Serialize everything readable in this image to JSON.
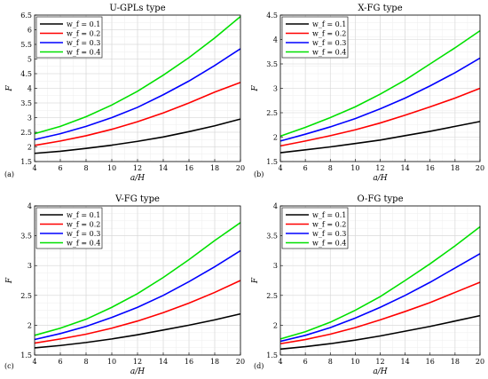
{
  "chart_data": [
    {
      "type": "line",
      "panel_label": "(a)",
      "title": "U-GPLs type",
      "xlabel": "a/H",
      "ylabel": "F",
      "xlim": [
        4,
        20
      ],
      "ylim": [
        1.5,
        6.5
      ],
      "xticks": [
        4,
        6,
        8,
        10,
        12,
        14,
        16,
        18,
        20
      ],
      "yticks": [
        1.5,
        2,
        2.5,
        3,
        3.5,
        4,
        4.5,
        5,
        5.5,
        6,
        6.5
      ],
      "ytick_labels": [
        "1.5",
        "2",
        "2.5",
        "3",
        "3.5",
        "4",
        "4.5",
        "5",
        "5.5",
        "6",
        "6.5"
      ],
      "grid": true,
      "legend_position": "top-left",
      "x": [
        4,
        6,
        8,
        10,
        12,
        14,
        16,
        18,
        20
      ],
      "series": [
        {
          "name": "w_f = 0.1",
          "color": "#000000",
          "values": [
            1.78,
            1.85,
            1.95,
            2.06,
            2.19,
            2.34,
            2.52,
            2.72,
            2.95
          ]
        },
        {
          "name": "w_f = 0.2",
          "color": "#ff0000",
          "values": [
            2.05,
            2.2,
            2.38,
            2.6,
            2.86,
            3.16,
            3.5,
            3.87,
            4.2
          ]
        },
        {
          "name": "w_f = 0.3",
          "color": "#0000ff",
          "values": [
            2.25,
            2.45,
            2.7,
            3.0,
            3.35,
            3.78,
            4.25,
            4.78,
            5.35
          ]
        },
        {
          "name": "w_f = 0.4",
          "color": "#00e000",
          "values": [
            2.45,
            2.7,
            3.03,
            3.43,
            3.9,
            4.45,
            5.05,
            5.72,
            6.45
          ]
        }
      ]
    },
    {
      "type": "line",
      "panel_label": "(b)",
      "title": "X-FG type",
      "xlabel": "a/H",
      "ylabel": "F",
      "xlim": [
        4,
        20
      ],
      "ylim": [
        1.5,
        4.5
      ],
      "xticks": [
        4,
        6,
        8,
        10,
        12,
        14,
        16,
        18,
        20
      ],
      "yticks": [
        1.5,
        2,
        2.5,
        3,
        3.5,
        4,
        4.5
      ],
      "ytick_labels": [
        "1.5",
        "2",
        "2.5",
        "3",
        "3.5",
        "4",
        "4.5"
      ],
      "grid": true,
      "legend_position": "top-left",
      "x": [
        4,
        6,
        8,
        10,
        12,
        14,
        16,
        18,
        20
      ],
      "series": [
        {
          "name": "w_f = 0.1",
          "color": "#000000",
          "values": [
            1.68,
            1.74,
            1.8,
            1.87,
            1.94,
            2.03,
            2.12,
            2.22,
            2.32
          ]
        },
        {
          "name": "w_f = 0.2",
          "color": "#ff0000",
          "values": [
            1.82,
            1.92,
            2.03,
            2.15,
            2.29,
            2.45,
            2.62,
            2.8,
            3.0
          ]
        },
        {
          "name": "w_f = 0.3",
          "color": "#0000ff",
          "values": [
            1.92,
            2.06,
            2.21,
            2.38,
            2.58,
            2.8,
            3.05,
            3.32,
            3.62
          ]
        },
        {
          "name": "w_f = 0.4",
          "color": "#00e000",
          "values": [
            2.02,
            2.2,
            2.4,
            2.62,
            2.88,
            3.17,
            3.5,
            3.83,
            4.18
          ]
        }
      ]
    },
    {
      "type": "line",
      "panel_label": "(c)",
      "title": "V-FG type",
      "xlabel": "a/H",
      "ylabel": "F",
      "xlim": [
        4,
        20
      ],
      "ylim": [
        1.5,
        4
      ],
      "xticks": [
        4,
        6,
        8,
        10,
        12,
        14,
        16,
        18,
        20
      ],
      "yticks": [
        1.5,
        2,
        2.5,
        3,
        3.5,
        4
      ],
      "ytick_labels": [
        "1.5",
        "2",
        "2.5",
        "3",
        "3.5",
        "4"
      ],
      "grid": true,
      "legend_position": "top-left",
      "x": [
        4,
        6,
        8,
        10,
        12,
        14,
        16,
        18,
        20
      ],
      "series": [
        {
          "name": "w_f = 0.1",
          "color": "#000000",
          "values": [
            1.62,
            1.66,
            1.71,
            1.77,
            1.84,
            1.92,
            2.0,
            2.09,
            2.19
          ]
        },
        {
          "name": "w_f = 0.2",
          "color": "#ff0000",
          "values": [
            1.7,
            1.77,
            1.85,
            1.95,
            2.07,
            2.21,
            2.37,
            2.55,
            2.75
          ]
        },
        {
          "name": "w_f = 0.3",
          "color": "#0000ff",
          "values": [
            1.76,
            1.86,
            1.98,
            2.13,
            2.3,
            2.5,
            2.73,
            2.98,
            3.25
          ]
        },
        {
          "name": "w_f = 0.4",
          "color": "#00e000",
          "values": [
            1.83,
            1.95,
            2.1,
            2.3,
            2.53,
            2.8,
            3.1,
            3.42,
            3.72
          ]
        }
      ]
    },
    {
      "type": "line",
      "panel_label": "(d)",
      "title": "O-FG type",
      "xlabel": "a/H",
      "ylabel": "F",
      "xlim": [
        4,
        20
      ],
      "ylim": [
        1.5,
        4
      ],
      "xticks": [
        4,
        6,
        8,
        10,
        12,
        14,
        16,
        18,
        20
      ],
      "yticks": [
        1.5,
        2,
        2.5,
        3,
        3.5,
        4
      ],
      "ytick_labels": [
        "1.5",
        "2",
        "2.5",
        "3",
        "3.5",
        "4"
      ],
      "grid": true,
      "legend_position": "top-left",
      "x": [
        4,
        6,
        8,
        10,
        12,
        14,
        16,
        18,
        20
      ],
      "series": [
        {
          "name": "w_f = 0.1",
          "color": "#000000",
          "values": [
            1.6,
            1.64,
            1.69,
            1.75,
            1.82,
            1.9,
            1.98,
            2.07,
            2.16
          ]
        },
        {
          "name": "w_f = 0.2",
          "color": "#ff0000",
          "values": [
            1.69,
            1.76,
            1.85,
            1.96,
            2.09,
            2.23,
            2.38,
            2.55,
            2.72
          ]
        },
        {
          "name": "w_f = 0.3",
          "color": "#0000ff",
          "values": [
            1.73,
            1.83,
            1.96,
            2.12,
            2.3,
            2.5,
            2.72,
            2.96,
            3.2
          ]
        },
        {
          "name": "w_f = 0.4",
          "color": "#00e000",
          "values": [
            1.77,
            1.89,
            2.05,
            2.25,
            2.48,
            2.75,
            3.03,
            3.33,
            3.65
          ]
        }
      ]
    }
  ]
}
